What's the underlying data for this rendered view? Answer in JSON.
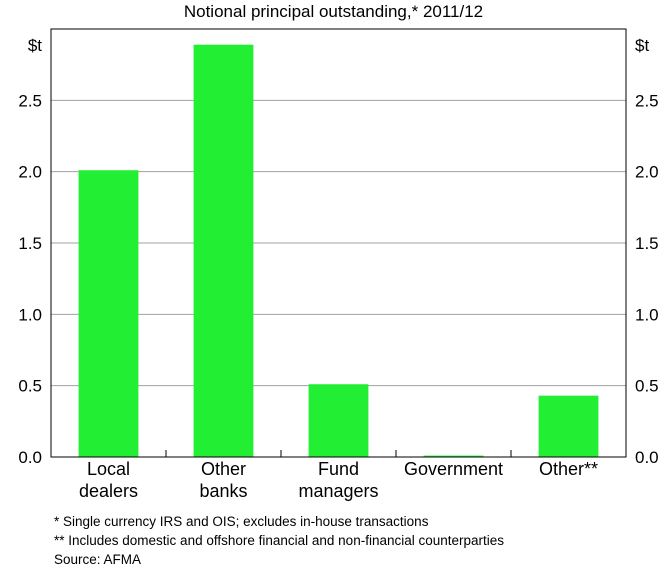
{
  "chart_data": {
    "type": "bar",
    "title": "Notional principal outstanding,* 2011/12",
    "categories": [
      [
        "Local",
        "dealers"
      ],
      [
        "Other",
        "banks"
      ],
      [
        "Fund",
        "managers"
      ],
      [
        "Government"
      ],
      [
        "Other**"
      ]
    ],
    "values": [
      2.01,
      2.89,
      0.51,
      0.01,
      0.43
    ],
    "ylim": [
      0,
      3.0
    ],
    "yticks": [
      0.0,
      0.5,
      1.0,
      1.5,
      2.0,
      2.5
    ],
    "ytick_labels": [
      "0.0",
      "0.5",
      "1.0",
      "1.5",
      "2.0",
      "2.5"
    ],
    "unit_label": "$t",
    "grid": true,
    "bar_color": "#22ee33"
  },
  "notes": {
    "footnote1": "*   Single currency IRS and OIS; excludes in-house transactions",
    "footnote2": "** Includes domestic and offshore financial and non-financial counterparties",
    "source": "Source: AFMA"
  }
}
